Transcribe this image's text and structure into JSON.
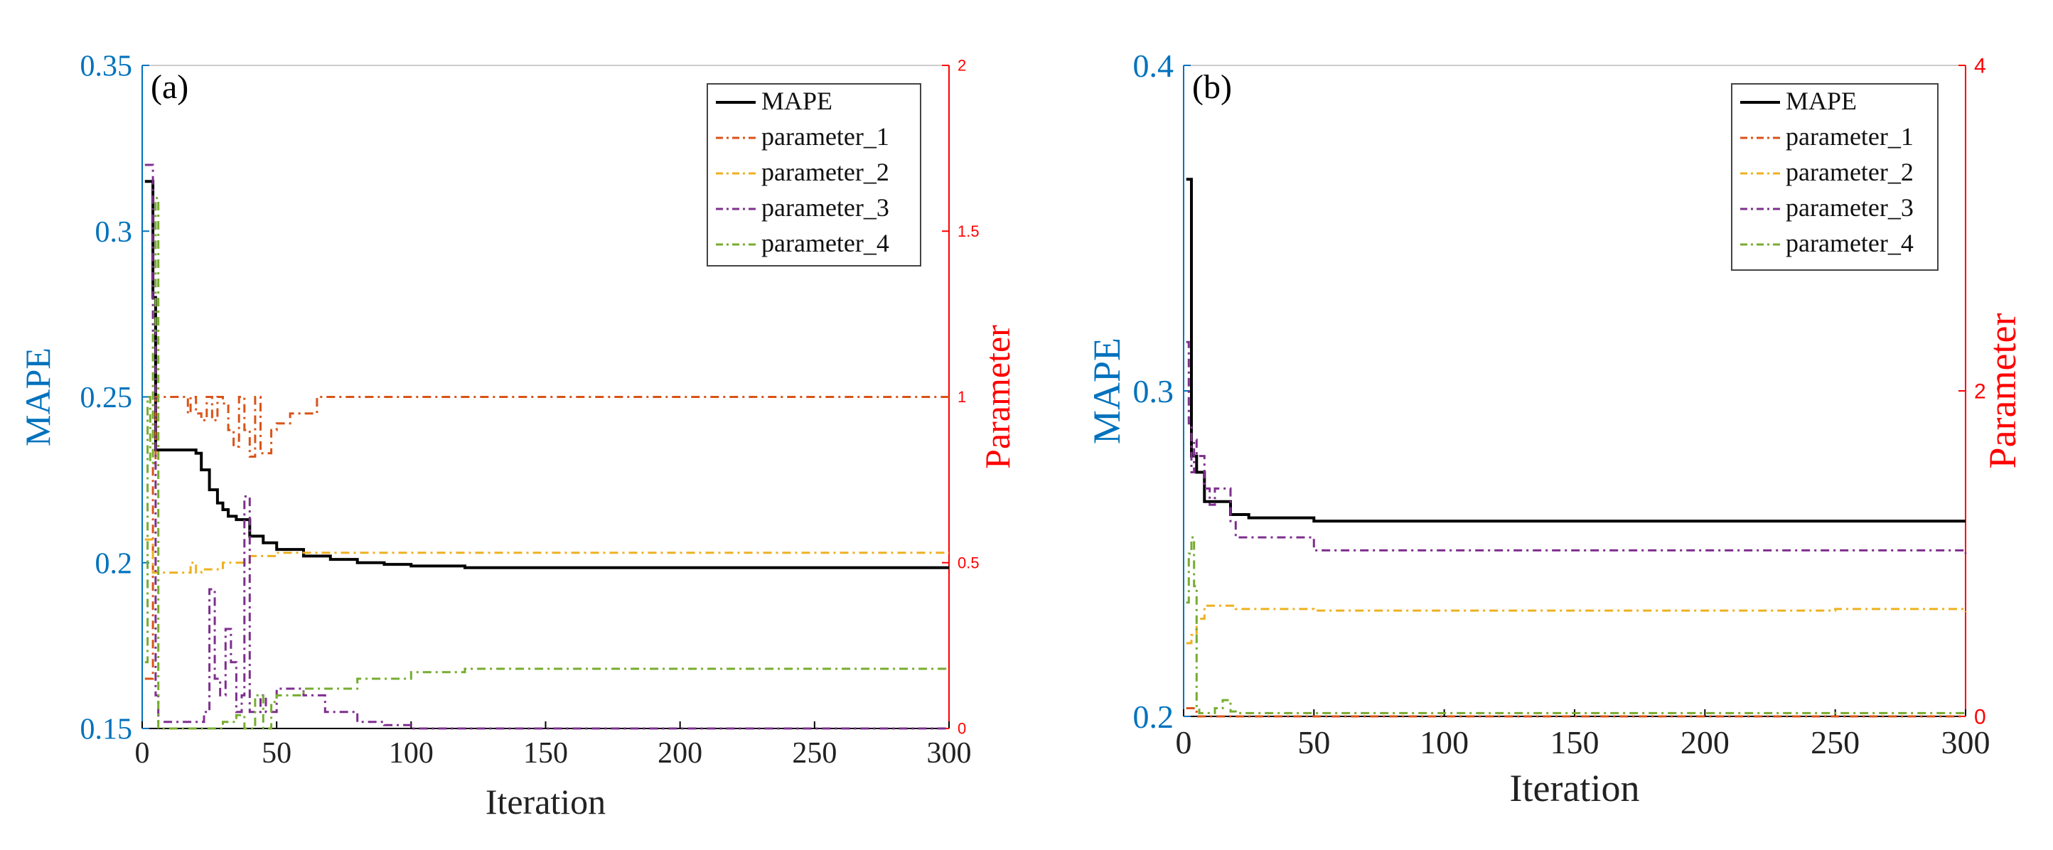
{
  "colors": {
    "mape": "#000000",
    "parameter_1": "#D95319",
    "parameter_2": "#EDB120",
    "parameter_3": "#7E2F8E",
    "parameter_4": "#77AC30",
    "left_axis": "#0072BD",
    "right_axis": "#FF0000",
    "frame": "#000000"
  },
  "chart_data": [
    {
      "type": "line",
      "panel_label": "(a)",
      "xlabel": "Iteration",
      "ylabel_left": "MAPE",
      "ylabel_right": "Parameter",
      "xlim": [
        0,
        300
      ],
      "xticks": [
        0,
        50,
        100,
        150,
        200,
        250,
        300
      ],
      "ylim_left": [
        0.15,
        0.35
      ],
      "yticks_left": [
        "0.15",
        "0.2",
        "0.25",
        "0.3",
        "0.35"
      ],
      "ylim_right": [
        0,
        2
      ],
      "yticks_right": [
        "0",
        "0.5",
        "1",
        "1.5",
        "2"
      ],
      "legend": [
        "MAPE",
        "parameter_1",
        "parameter_2",
        "parameter_3",
        "parameter_4"
      ],
      "series": [
        {
          "name": "MAPE",
          "axis": "left",
          "style": "solid",
          "x": [
            1,
            3,
            4,
            5,
            6,
            20,
            22,
            25,
            28,
            30,
            32,
            35,
            40,
            45,
            50,
            60,
            70,
            80,
            90,
            100,
            120,
            150,
            300
          ],
          "y": [
            0.315,
            0.315,
            0.28,
            0.234,
            0.234,
            0.233,
            0.228,
            0.222,
            0.218,
            0.216,
            0.214,
            0.213,
            0.208,
            0.206,
            0.204,
            0.202,
            0.201,
            0.2,
            0.1995,
            0.199,
            0.1985,
            0.1985,
            0.1985
          ]
        },
        {
          "name": "parameter_1",
          "axis": "right",
          "style": "dashdot",
          "x": [
            1,
            3,
            4,
            5,
            6,
            15,
            17,
            18,
            20,
            22,
            24,
            26,
            28,
            30,
            32,
            34,
            36,
            38,
            40,
            42,
            44,
            46,
            48,
            50,
            55,
            60,
            65,
            70,
            300
          ],
          "y": [
            0.15,
            0.15,
            0.8,
            1.0,
            1.0,
            1.0,
            0.95,
            1.0,
            0.95,
            0.93,
            1.0,
            0.93,
            1.0,
            0.98,
            0.9,
            0.85,
            1.0,
            0.9,
            0.82,
            1.0,
            0.83,
            0.83,
            0.9,
            0.92,
            0.95,
            0.95,
            1.0,
            1.0,
            1.0
          ]
        },
        {
          "name": "parameter_2",
          "axis": "right",
          "style": "dashdot",
          "x": [
            1,
            3,
            4,
            5,
            6,
            10,
            15,
            18,
            20,
            22,
            30,
            40,
            50,
            60,
            80,
            100,
            300
          ],
          "y": [
            0.57,
            0.57,
            0.47,
            0.47,
            0.47,
            0.47,
            0.47,
            0.5,
            0.47,
            0.48,
            0.5,
            0.52,
            0.53,
            0.53,
            0.53,
            0.53,
            0.53
          ]
        },
        {
          "name": "parameter_3",
          "axis": "right",
          "style": "dashdot",
          "x": [
            1,
            3,
            4,
            5,
            6,
            10,
            20,
            23,
            25,
            27,
            29,
            31,
            33,
            35,
            37,
            38,
            40,
            42,
            44,
            46,
            48,
            50,
            55,
            60,
            62,
            65,
            68,
            70,
            80,
            90,
            100,
            130,
            300
          ],
          "y": [
            1.7,
            1.7,
            1.2,
            0.1,
            0.02,
            0.02,
            0.02,
            0.05,
            0.42,
            0.15,
            0.1,
            0.3,
            0.2,
            0.05,
            0.1,
            0.7,
            0.05,
            0.05,
            0.1,
            0.05,
            0.05,
            0.12,
            0.12,
            0.1,
            0.1,
            0.1,
            0.05,
            0.05,
            0.02,
            0.01,
            0.0,
            0.0,
            0.0
          ]
        },
        {
          "name": "parameter_4",
          "axis": "right",
          "style": "dashdot",
          "x": [
            1,
            2,
            3,
            4,
            5,
            6,
            10,
            20,
            30,
            35,
            38,
            40,
            42,
            45,
            48,
            50,
            55,
            60,
            65,
            70,
            80,
            90,
            100,
            110,
            120,
            300
          ],
          "y": [
            0.2,
            1.0,
            0.8,
            1.2,
            1.6,
            0.0,
            0.0,
            0.0,
            0.02,
            0.04,
            0.0,
            0.0,
            0.1,
            0.0,
            0.08,
            0.1,
            0.1,
            0.12,
            0.12,
            0.12,
            0.15,
            0.15,
            0.17,
            0.17,
            0.18,
            0.18
          ]
        }
      ]
    },
    {
      "type": "line",
      "panel_label": "(b)",
      "xlabel": "Iteration",
      "ylabel_left": "MAPE",
      "ylabel_right": "Parameter",
      "xlim": [
        0,
        300
      ],
      "xticks": [
        0,
        50,
        100,
        150,
        200,
        250,
        300
      ],
      "ylim_left": [
        0.2,
        0.4
      ],
      "yticks_left": [
        "0.2",
        "0.3",
        "0.4"
      ],
      "ylim_right": [
        0,
        4
      ],
      "yticks_right": [
        "0",
        "2",
        "4"
      ],
      "legend": [
        "MAPE",
        "parameter_1",
        "parameter_2",
        "parameter_3",
        "parameter_4"
      ],
      "series": [
        {
          "name": "MAPE",
          "axis": "left",
          "style": "solid",
          "x": [
            1,
            3,
            5,
            8,
            10,
            15,
            18,
            25,
            30,
            50,
            100,
            200,
            300
          ],
          "y": [
            0.365,
            0.28,
            0.275,
            0.266,
            0.266,
            0.266,
            0.262,
            0.261,
            0.261,
            0.26,
            0.26,
            0.26,
            0.26
          ]
        },
        {
          "name": "parameter_1",
          "axis": "right",
          "style": "dashdot",
          "x": [
            1,
            5,
            300
          ],
          "y": [
            0.05,
            0.0,
            0.0
          ]
        },
        {
          "name": "parameter_2",
          "axis": "right",
          "style": "dashdot",
          "x": [
            1,
            3,
            5,
            8,
            10,
            20,
            50,
            100,
            200,
            250,
            300
          ],
          "y": [
            0.45,
            0.5,
            0.6,
            0.68,
            0.68,
            0.66,
            0.65,
            0.65,
            0.65,
            0.66,
            0.64
          ]
        },
        {
          "name": "parameter_3",
          "axis": "right",
          "style": "dashdot",
          "x": [
            1,
            2,
            3,
            4,
            5,
            8,
            10,
            12,
            15,
            18,
            20,
            25,
            30,
            50,
            100,
            200,
            250,
            300
          ],
          "y": [
            2.3,
            1.8,
            1.5,
            1.7,
            1.6,
            1.4,
            1.3,
            1.4,
            1.4,
            1.2,
            1.1,
            1.1,
            1.1,
            1.02,
            1.02,
            1.02,
            1.02,
            1.0
          ]
        },
        {
          "name": "parameter_4",
          "axis": "right",
          "style": "dashdot",
          "x": [
            1,
            2,
            3,
            4,
            5,
            6,
            10,
            12,
            15,
            18,
            20,
            50,
            100,
            200,
            300
          ],
          "y": [
            0.7,
            1.0,
            1.1,
            0.8,
            0.05,
            0.02,
            0.02,
            0.05,
            0.1,
            0.03,
            0.02,
            0.02,
            0.02,
            0.02,
            0.03
          ]
        }
      ]
    }
  ]
}
